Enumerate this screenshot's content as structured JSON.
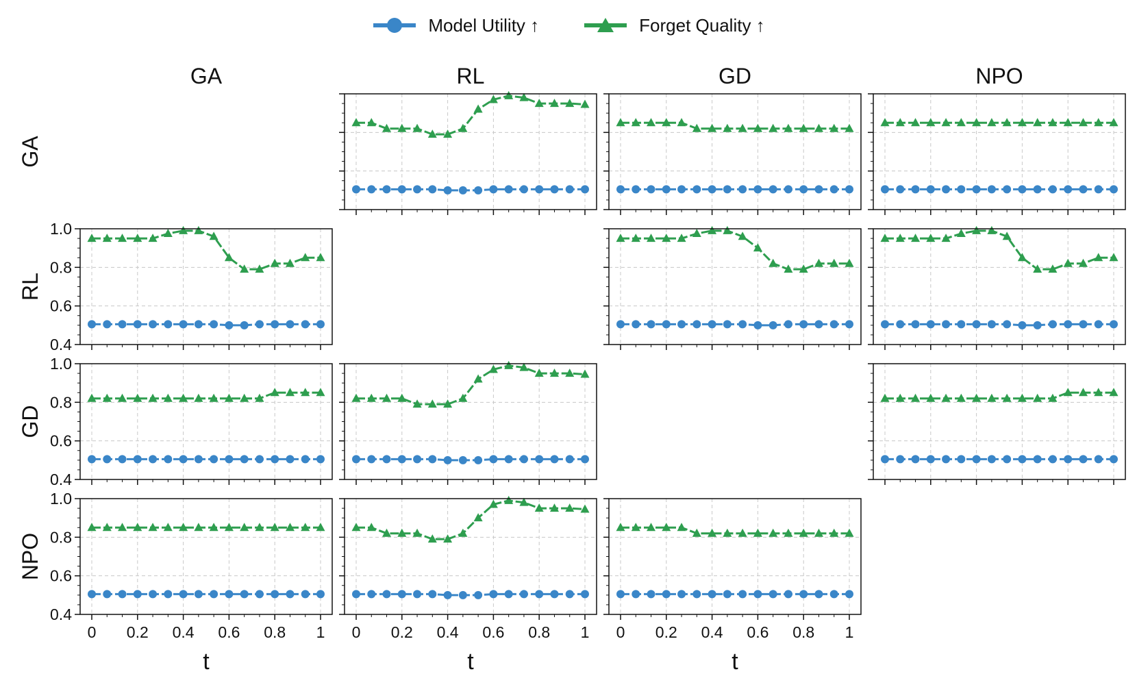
{
  "legend": {
    "utility_label": "Model Utility ↑",
    "forget_label": "Forget Quality ↑"
  },
  "colors": {
    "utility": "#3a86c8",
    "forget": "#2e9e4f",
    "grid": "#c8c8c8",
    "axis": "#111111"
  },
  "chart_data": {
    "type": "line",
    "layout": "grid 4x4 (rows = first method, columns = second method), diagonal empty",
    "col_titles": [
      "GA",
      "RL",
      "GD",
      "NPO"
    ],
    "row_titles": [
      "GA",
      "RL",
      "GD",
      "NPO"
    ],
    "xlabel": "t",
    "x_ticks": [
      "0",
      "0.2",
      "0.4",
      "0.6",
      "0.8",
      "1"
    ],
    "y_ticks": [
      "0.4",
      "0.6",
      "0.8",
      "1.0"
    ],
    "xlim": [
      0,
      1
    ],
    "ylim": [
      0.4,
      1.0
    ],
    "grid": true,
    "legend_position": "top-center",
    "t": [
      0,
      0.0667,
      0.1333,
      0.2,
      0.2667,
      0.3333,
      0.4,
      0.4667,
      0.5333,
      0.6,
      0.6667,
      0.7333,
      0.8,
      0.8667,
      0.9333,
      1
    ],
    "series_names": [
      "Model Utility ↑",
      "Forget Quality ↑"
    ],
    "panels": [
      {
        "row": "GA",
        "col": "RL",
        "utility": [
          0.505,
          0.505,
          0.505,
          0.505,
          0.505,
          0.505,
          0.5,
          0.5,
          0.5,
          0.505,
          0.505,
          0.505,
          0.505,
          0.505,
          0.505,
          0.505
        ],
        "forget": [
          0.85,
          0.85,
          0.82,
          0.82,
          0.82,
          0.79,
          0.79,
          0.82,
          0.92,
          0.97,
          0.99,
          0.98,
          0.95,
          0.95,
          0.95,
          0.945
        ]
      },
      {
        "row": "GA",
        "col": "GD",
        "utility": [
          0.505,
          0.505,
          0.505,
          0.505,
          0.505,
          0.505,
          0.505,
          0.505,
          0.505,
          0.505,
          0.505,
          0.505,
          0.505,
          0.505,
          0.505,
          0.505
        ],
        "forget": [
          0.85,
          0.85,
          0.85,
          0.85,
          0.85,
          0.82,
          0.82,
          0.82,
          0.82,
          0.82,
          0.82,
          0.82,
          0.82,
          0.82,
          0.82,
          0.82
        ]
      },
      {
        "row": "GA",
        "col": "NPO",
        "utility": [
          0.505,
          0.505,
          0.505,
          0.505,
          0.505,
          0.505,
          0.505,
          0.505,
          0.505,
          0.505,
          0.505,
          0.505,
          0.505,
          0.505,
          0.505,
          0.505
        ],
        "forget": [
          0.85,
          0.85,
          0.85,
          0.85,
          0.85,
          0.85,
          0.85,
          0.85,
          0.85,
          0.85,
          0.85,
          0.85,
          0.85,
          0.85,
          0.85,
          0.85
        ]
      },
      {
        "row": "RL",
        "col": "GA",
        "utility": [
          0.505,
          0.505,
          0.505,
          0.505,
          0.505,
          0.505,
          0.505,
          0.505,
          0.505,
          0.5,
          0.5,
          0.505,
          0.505,
          0.505,
          0.505,
          0.505
        ],
        "forget": [
          0.95,
          0.95,
          0.95,
          0.95,
          0.95,
          0.975,
          0.99,
          0.99,
          0.96,
          0.85,
          0.79,
          0.79,
          0.82,
          0.82,
          0.85,
          0.85
        ]
      },
      {
        "row": "RL",
        "col": "GD",
        "utility": [
          0.505,
          0.505,
          0.505,
          0.505,
          0.505,
          0.505,
          0.505,
          0.505,
          0.505,
          0.5,
          0.5,
          0.505,
          0.505,
          0.505,
          0.505,
          0.505
        ],
        "forget": [
          0.95,
          0.95,
          0.95,
          0.95,
          0.95,
          0.975,
          0.99,
          0.99,
          0.96,
          0.9,
          0.82,
          0.79,
          0.79,
          0.82,
          0.82,
          0.82
        ]
      },
      {
        "row": "RL",
        "col": "NPO",
        "utility": [
          0.505,
          0.505,
          0.505,
          0.505,
          0.505,
          0.505,
          0.505,
          0.505,
          0.505,
          0.5,
          0.5,
          0.505,
          0.505,
          0.505,
          0.505,
          0.505
        ],
        "forget": [
          0.95,
          0.95,
          0.95,
          0.95,
          0.95,
          0.975,
          0.99,
          0.99,
          0.96,
          0.85,
          0.79,
          0.79,
          0.82,
          0.82,
          0.85,
          0.85
        ]
      },
      {
        "row": "GD",
        "col": "GA",
        "utility": [
          0.505,
          0.505,
          0.505,
          0.505,
          0.505,
          0.505,
          0.505,
          0.505,
          0.505,
          0.505,
          0.505,
          0.505,
          0.505,
          0.505,
          0.505,
          0.505
        ],
        "forget": [
          0.82,
          0.82,
          0.82,
          0.82,
          0.82,
          0.82,
          0.82,
          0.82,
          0.82,
          0.82,
          0.82,
          0.82,
          0.85,
          0.85,
          0.85,
          0.85
        ]
      },
      {
        "row": "GD",
        "col": "RL",
        "utility": [
          0.505,
          0.505,
          0.505,
          0.505,
          0.505,
          0.505,
          0.5,
          0.5,
          0.5,
          0.505,
          0.505,
          0.505,
          0.505,
          0.505,
          0.505,
          0.505
        ],
        "forget": [
          0.82,
          0.82,
          0.82,
          0.82,
          0.79,
          0.79,
          0.79,
          0.82,
          0.92,
          0.97,
          0.99,
          0.98,
          0.95,
          0.95,
          0.95,
          0.945
        ]
      },
      {
        "row": "GD",
        "col": "NPO",
        "utility": [
          0.505,
          0.505,
          0.505,
          0.505,
          0.505,
          0.505,
          0.505,
          0.505,
          0.505,
          0.505,
          0.505,
          0.505,
          0.505,
          0.505,
          0.505,
          0.505
        ],
        "forget": [
          0.82,
          0.82,
          0.82,
          0.82,
          0.82,
          0.82,
          0.82,
          0.82,
          0.82,
          0.82,
          0.82,
          0.82,
          0.85,
          0.85,
          0.85,
          0.85
        ]
      },
      {
        "row": "NPO",
        "col": "GA",
        "utility": [
          0.505,
          0.505,
          0.505,
          0.505,
          0.505,
          0.505,
          0.505,
          0.505,
          0.505,
          0.505,
          0.505,
          0.505,
          0.505,
          0.505,
          0.505,
          0.505
        ],
        "forget": [
          0.85,
          0.85,
          0.85,
          0.85,
          0.85,
          0.85,
          0.85,
          0.85,
          0.85,
          0.85,
          0.85,
          0.85,
          0.85,
          0.85,
          0.85,
          0.85
        ]
      },
      {
        "row": "NPO",
        "col": "RL",
        "utility": [
          0.505,
          0.505,
          0.505,
          0.505,
          0.505,
          0.505,
          0.5,
          0.5,
          0.5,
          0.505,
          0.505,
          0.505,
          0.505,
          0.505,
          0.505,
          0.505
        ],
        "forget": [
          0.85,
          0.85,
          0.82,
          0.82,
          0.82,
          0.79,
          0.79,
          0.82,
          0.9,
          0.97,
          0.99,
          0.98,
          0.95,
          0.95,
          0.95,
          0.945
        ]
      },
      {
        "row": "NPO",
        "col": "GD",
        "utility": [
          0.505,
          0.505,
          0.505,
          0.505,
          0.505,
          0.505,
          0.505,
          0.505,
          0.505,
          0.505,
          0.505,
          0.505,
          0.505,
          0.505,
          0.505,
          0.505
        ],
        "forget": [
          0.85,
          0.85,
          0.85,
          0.85,
          0.85,
          0.82,
          0.82,
          0.82,
          0.82,
          0.82,
          0.82,
          0.82,
          0.82,
          0.82,
          0.82,
          0.82
        ]
      }
    ]
  }
}
